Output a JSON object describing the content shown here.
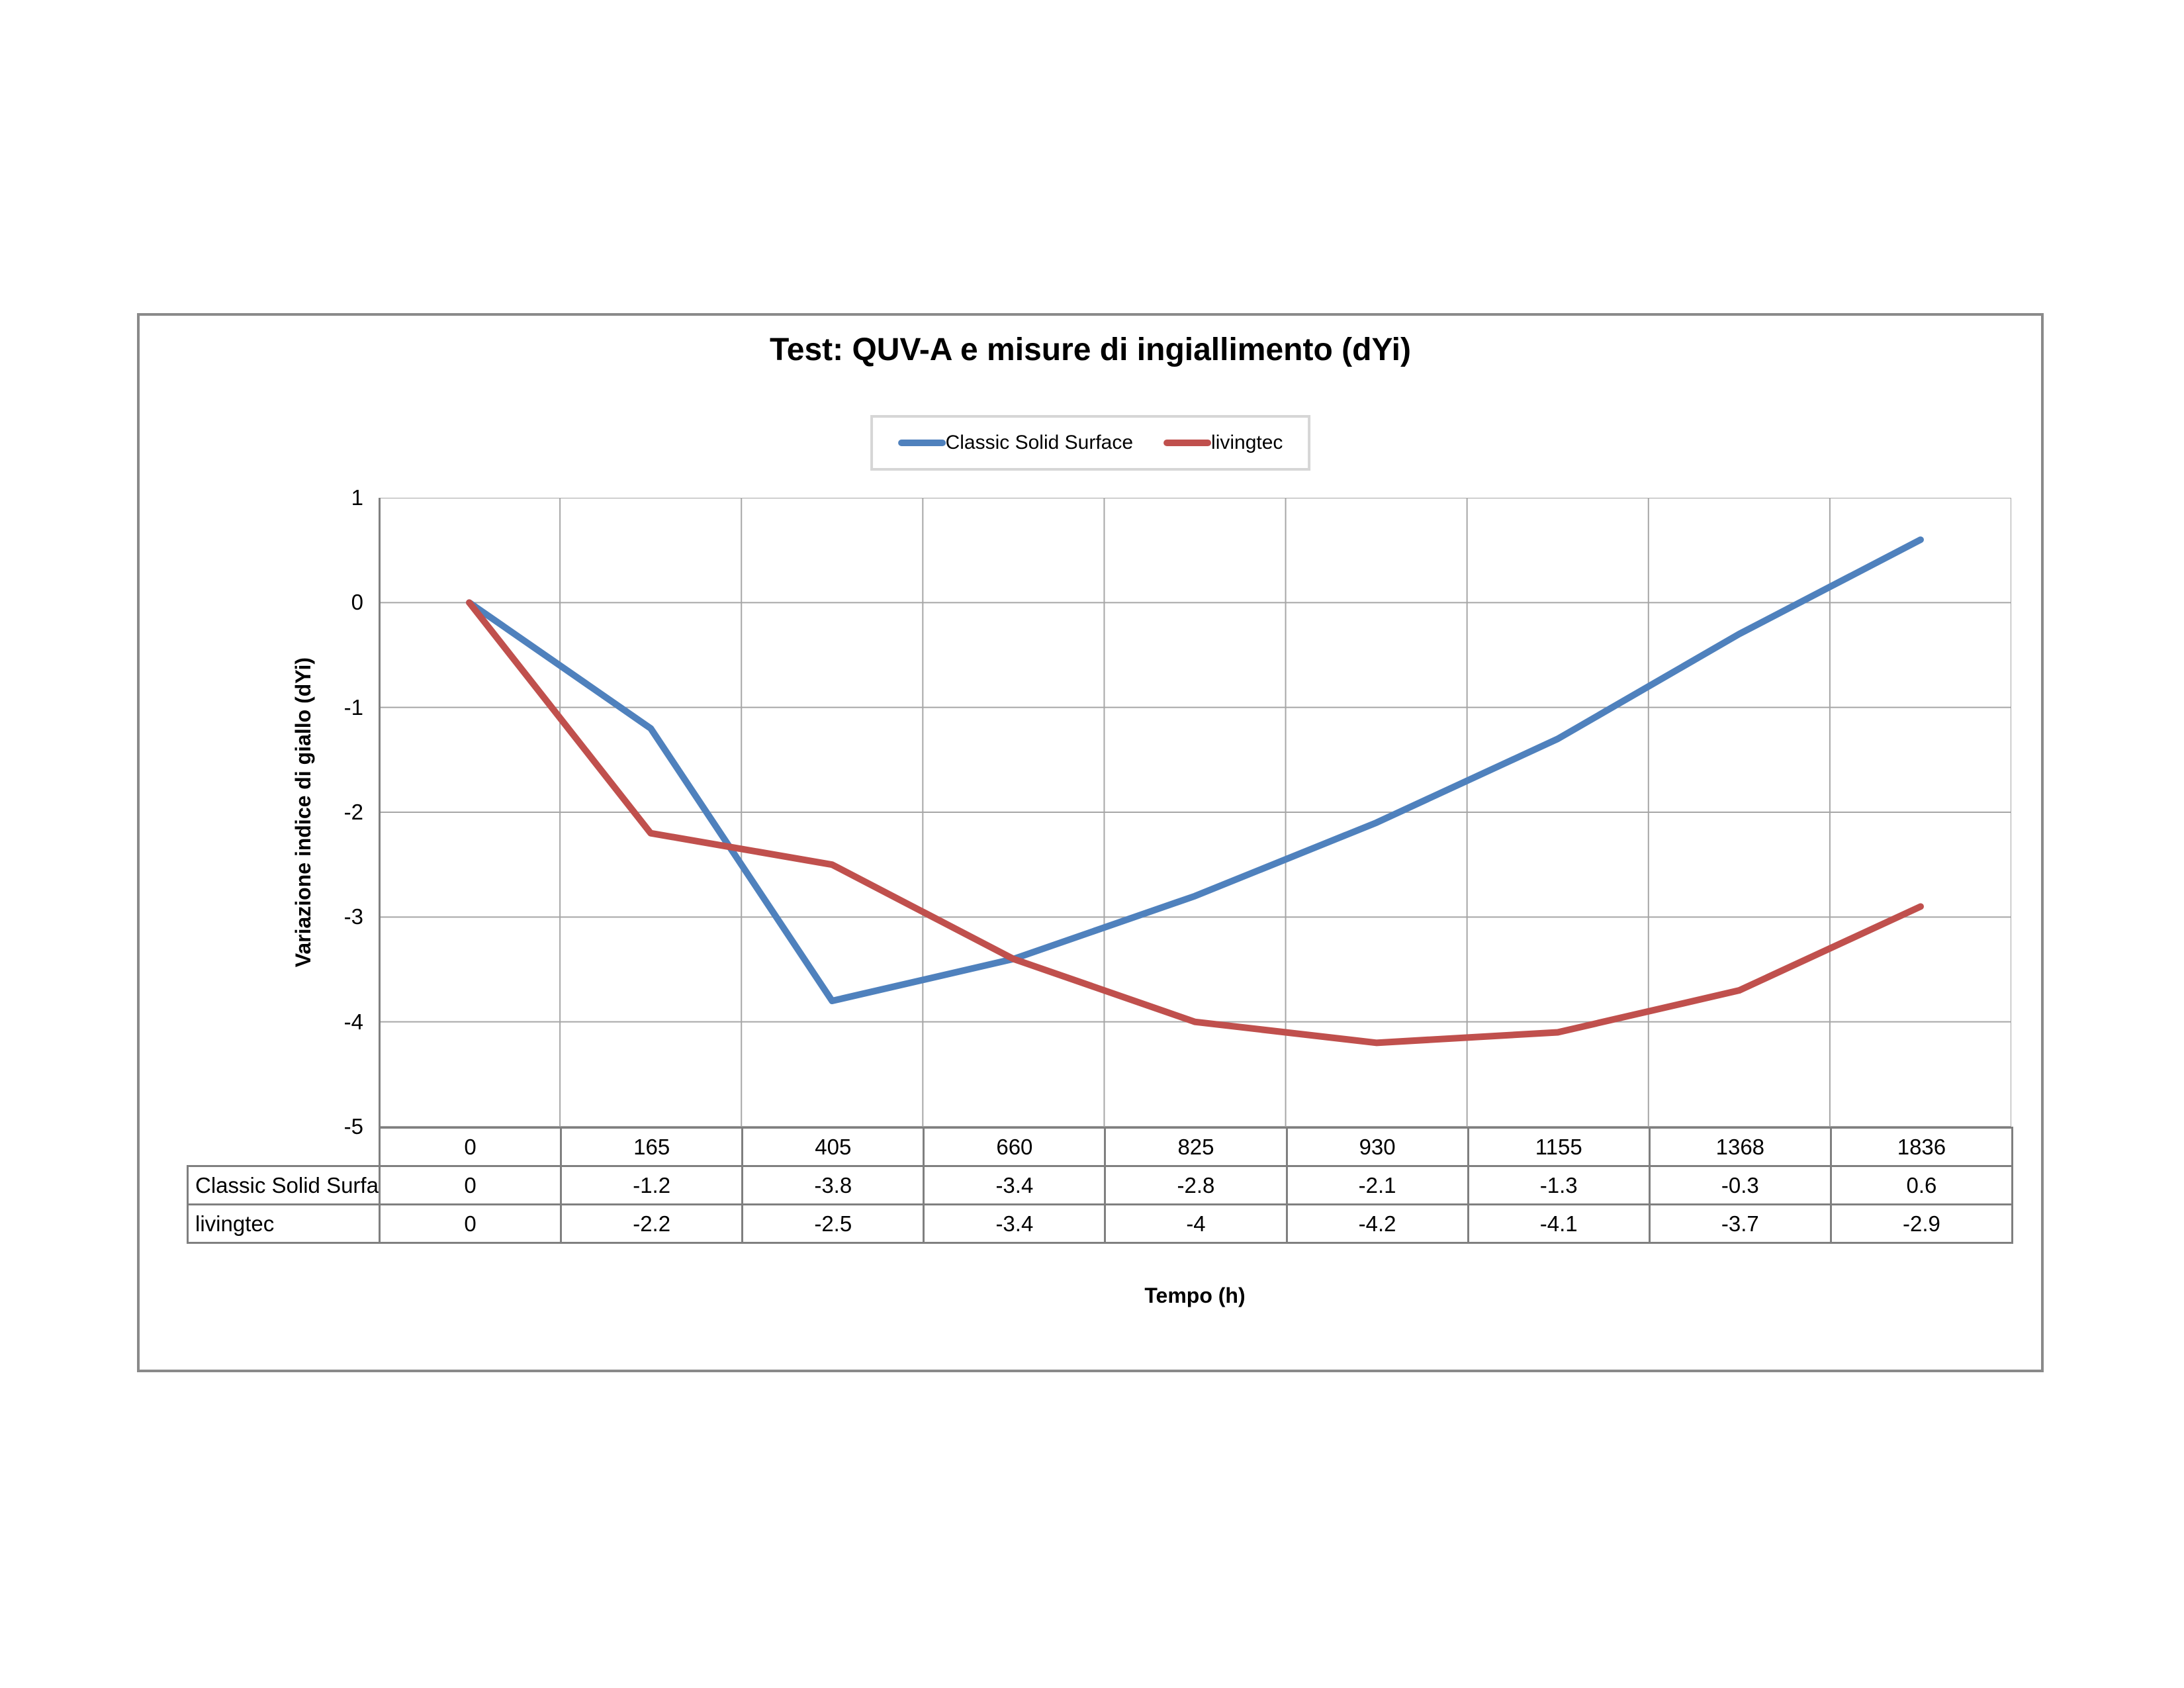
{
  "title": "Test: QUV-A e misure di ingiallimento (dYi)",
  "legend": {
    "items": [
      {
        "label": "Classic Solid Surface",
        "color": "#4f81bd"
      },
      {
        "label": "livingtec",
        "color": "#c0504d"
      }
    ]
  },
  "axes": {
    "y_title": "Variazione indice di giallo (dYi)",
    "x_title": "Tempo (h)",
    "y_ticks": [
      "1",
      "0",
      "-1",
      "-2",
      "-3",
      "-4",
      "-5"
    ]
  },
  "chart_data": {
    "type": "line",
    "title": "Test: QUV-A e misure di ingiallimento (dYi)",
    "xlabel": "Tempo (h)",
    "ylabel": "Variazione indice di giallo (dYi)",
    "categories": [
      "0",
      "165",
      "405",
      "660",
      "825",
      "930",
      "1155",
      "1368",
      "1836"
    ],
    "series": [
      {
        "name": "Classic Solid Surface",
        "color": "#4f81bd",
        "values": [
          0,
          -1.2,
          -3.8,
          -3.4,
          -2.8,
          -2.1,
          -1.3,
          -0.3,
          0.6
        ]
      },
      {
        "name": "livingtec",
        "color": "#c0504d",
        "values": [
          0,
          -2.2,
          -2.5,
          -3.4,
          -4,
          -4.2,
          -4.1,
          -3.7,
          -2.9
        ]
      }
    ],
    "ylim": [
      -5,
      1
    ],
    "y_step": 1,
    "grid": true,
    "legend_position": "top",
    "data_table": true,
    "gridline_color": "#a6a6a6",
    "axis_color": "#808080"
  }
}
